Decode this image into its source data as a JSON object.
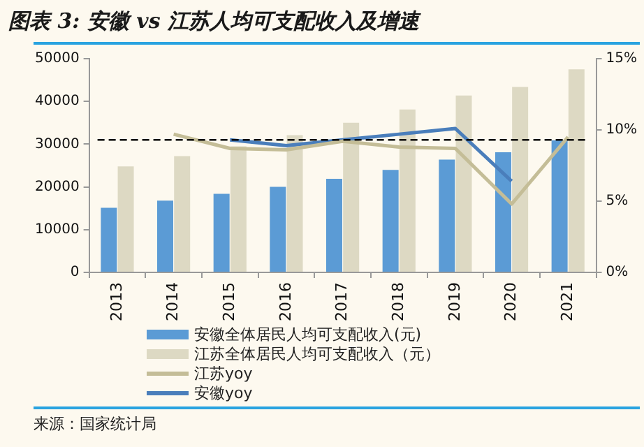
{
  "chart_data": {
    "type": "bar",
    "title": "图表 3:  安徽 vs 江苏人均可支配收入及增速",
    "categories": [
      "2013",
      "2014",
      "2015",
      "2016",
      "2017",
      "2018",
      "2019",
      "2020",
      "2021"
    ],
    "series": [
      {
        "name": "安徽全体居民人均可支配收入(元)",
        "color": "#5b9bd5",
        "values": [
          15100,
          16800,
          18400,
          20000,
          21900,
          24000,
          26400,
          28100,
          30900
        ]
      },
      {
        "name": "江苏全体居民人均可支配收入（元）",
        "color": "#ddd9c3",
        "values": [
          24800,
          27200,
          29500,
          32100,
          35000,
          38100,
          41400,
          43400,
          47500
        ]
      },
      {
        "name": "江苏yoy",
        "type": "line",
        "axis": "y2",
        "color": "#c4bd97",
        "values": [
          null,
          9.7,
          8.7,
          8.6,
          9.2,
          8.8,
          8.7,
          4.8,
          9.5
        ]
      },
      {
        "name": "安徽yoy",
        "type": "line",
        "axis": "y2",
        "color": "#4a7ebb",
        "values": [
          null,
          null,
          9.3,
          8.9,
          9.3,
          9.7,
          10.1,
          6.4,
          null
        ]
      }
    ],
    "ylim": [
      0,
      50000
    ],
    "yticks": [
      0,
      10000,
      20000,
      30000,
      40000,
      50000
    ],
    "y2lim": [
      0,
      15
    ],
    "y2ticks": [
      {
        "value": 0,
        "label": "0%"
      },
      {
        "value": 5,
        "label": "5%"
      },
      {
        "value": 10,
        "label": "10%"
      },
      {
        "value": 15,
        "label": "15%"
      }
    ],
    "ref_lines": [
      {
        "axis": "y",
        "value": 31000,
        "color": "#000000",
        "line_style": "dashed"
      }
    ],
    "grid": false,
    "legend": "bottom",
    "marker": "none",
    "annotations": [
      "来源：国家统计局"
    ]
  }
}
